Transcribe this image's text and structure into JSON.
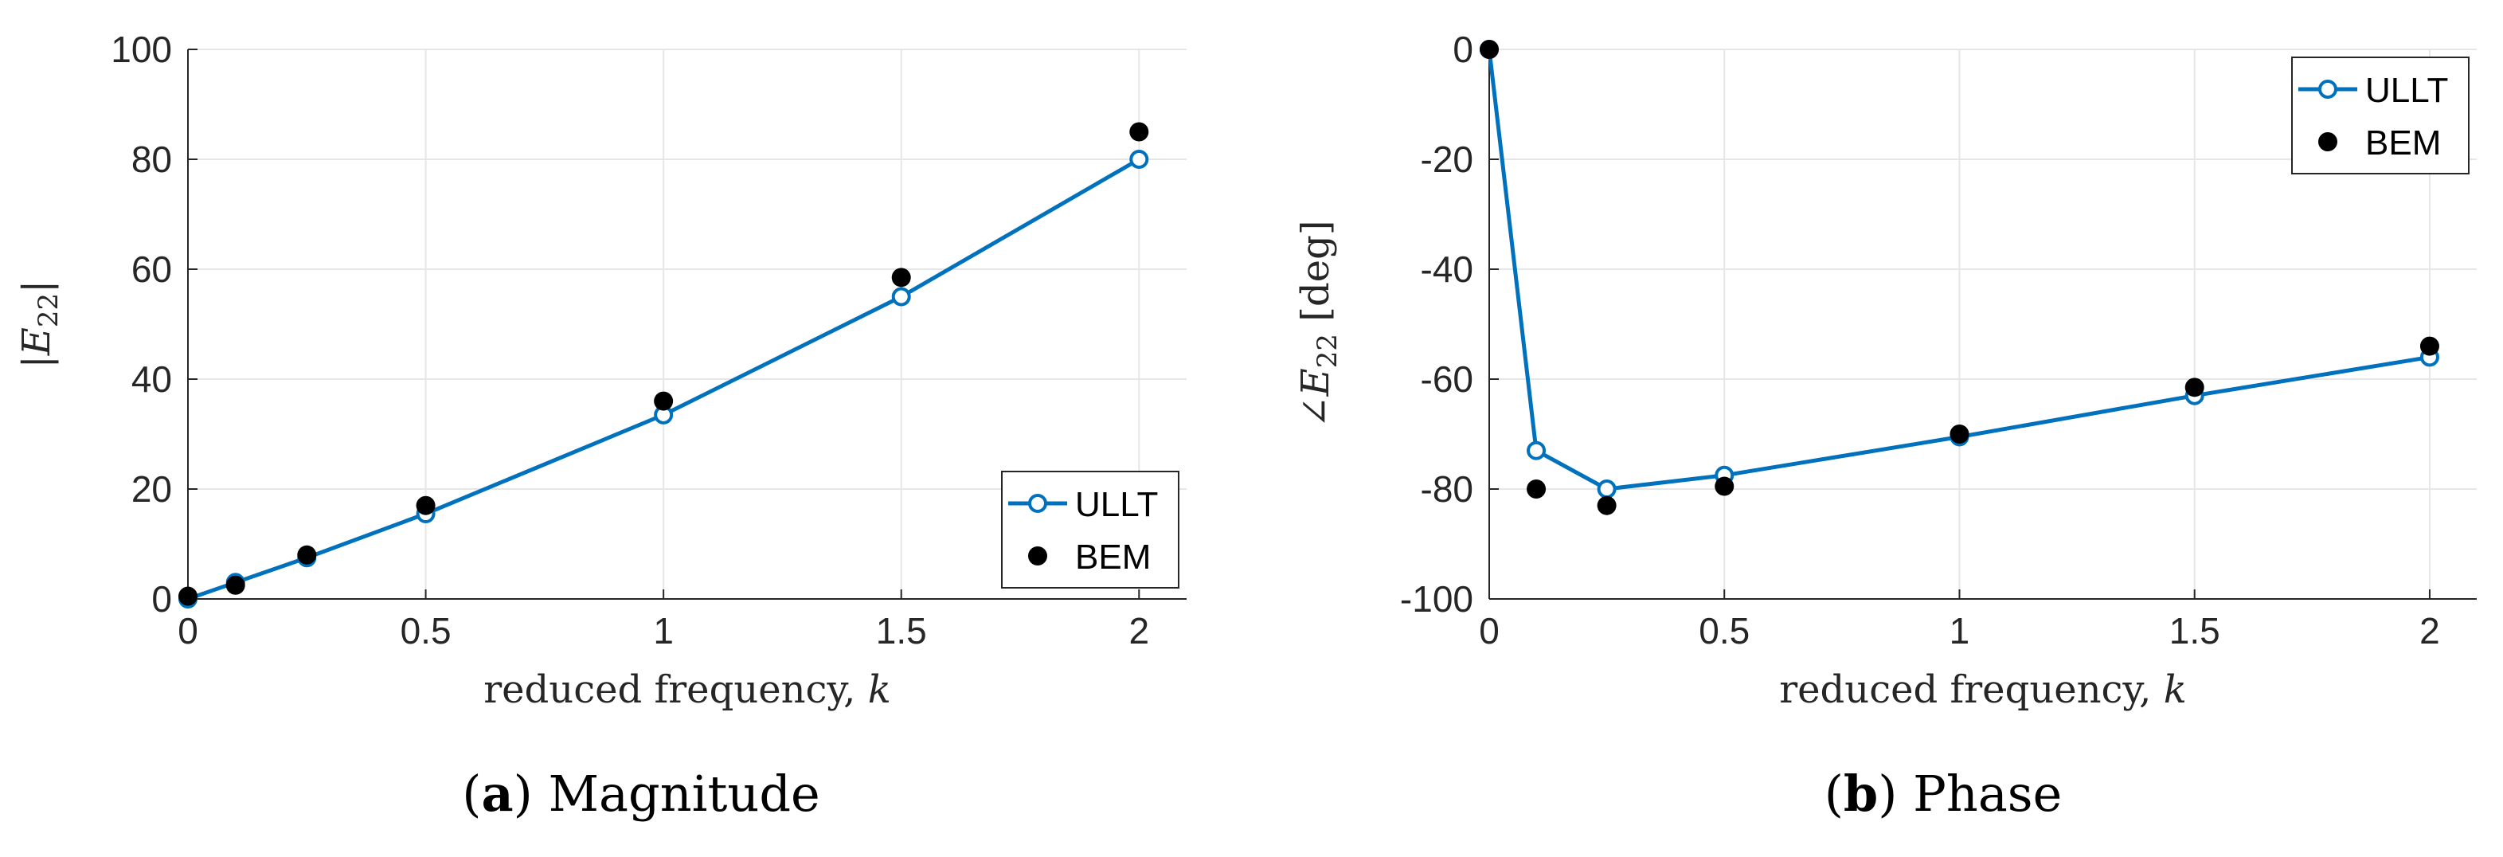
{
  "chart_data": [
    {
      "type": "line",
      "caption_letter": "a",
      "caption_text": "Magnitude",
      "xlabel": "reduced frequency, k",
      "ylabel": "|E22|",
      "xlim": [
        0,
        2.1
      ],
      "ylim": [
        0,
        100
      ],
      "xticks": [
        0,
        0.5,
        1,
        1.5,
        2
      ],
      "xtick_labels": [
        "0",
        "0.5",
        "1",
        "1.5",
        "2"
      ],
      "yticks": [
        0,
        20,
        40,
        60,
        80,
        100
      ],
      "ytick_labels": [
        "0",
        "20",
        "40",
        "60",
        "80",
        "100"
      ],
      "grid": true,
      "legend_position": "bottom-right",
      "series": [
        {
          "name": "ULLT",
          "style": "line-open-circle",
          "color": "#0072BD",
          "x": [
            0,
            0.1,
            0.25,
            0.5,
            1,
            1.5,
            2
          ],
          "y": [
            0,
            3,
            7.5,
            15.5,
            33.5,
            55,
            80
          ]
        },
        {
          "name": "BEM",
          "style": "filled-marker",
          "color": "#000000",
          "x": [
            0,
            0.1,
            0.25,
            0.5,
            1,
            1.5,
            2
          ],
          "y": [
            0.5,
            2.5,
            8,
            17,
            36,
            58.5,
            85
          ]
        }
      ]
    },
    {
      "type": "line",
      "caption_letter": "b",
      "caption_text": "Phase",
      "xlabel": "reduced frequency, k",
      "ylabel": "∠E22 [deg]",
      "xlim": [
        0,
        2.1
      ],
      "ylim": [
        -100,
        0
      ],
      "xticks": [
        0,
        0.5,
        1,
        1.5,
        2
      ],
      "xtick_labels": [
        "0",
        "0.5",
        "1",
        "1.5",
        "2"
      ],
      "yticks": [
        -100,
        -80,
        -60,
        -40,
        -20,
        0
      ],
      "ytick_labels": [
        "-100",
        "-80",
        "-60",
        "-40",
        "-20",
        "0"
      ],
      "grid": true,
      "legend_position": "top-right",
      "series": [
        {
          "name": "ULLT",
          "style": "line-open-circle",
          "color": "#0072BD",
          "x": [
            0,
            0.1,
            0.25,
            0.5,
            1,
            1.5,
            2
          ],
          "y": [
            0,
            -73,
            -80,
            -77.5,
            -70.5,
            -63,
            -56
          ]
        },
        {
          "name": "BEM",
          "style": "filled-marker",
          "color": "#000000",
          "x": [
            0,
            0.1,
            0.25,
            0.5,
            1,
            1.5,
            2
          ],
          "y": [
            0,
            -80,
            -83,
            -79.5,
            -70,
            -61.5,
            -54
          ]
        }
      ]
    }
  ]
}
